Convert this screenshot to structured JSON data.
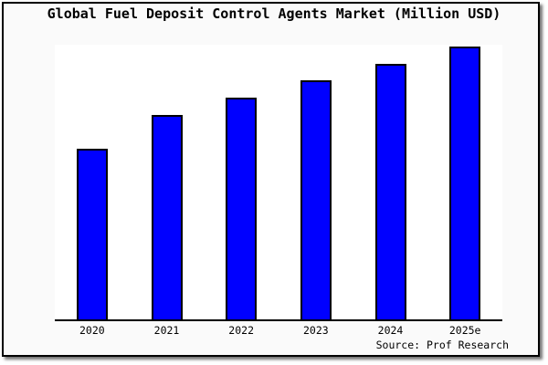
{
  "window": {
    "background_color": "#fafafa",
    "frame_border_color": "#000000"
  },
  "chart_data": {
    "type": "bar",
    "title": "Global Fuel Deposit Control Agents Market (Million USD)",
    "categories": [
      "2020",
      "2021",
      "2022",
      "2023",
      "2024",
      "2025e"
    ],
    "values": [
      100,
      120,
      130,
      140,
      150,
      160
    ],
    "xlabel": "",
    "ylabel": "",
    "ylim": [
      0,
      161
    ],
    "y_axis_labels_visible": false,
    "grid": false,
    "legend": false,
    "bar_color": "#0000ff",
    "bar_border_color": "#000000",
    "plot_background": "#ffffff",
    "axis_line_color": "#000000"
  },
  "footer": {
    "source": "Source: Prof Research"
  }
}
